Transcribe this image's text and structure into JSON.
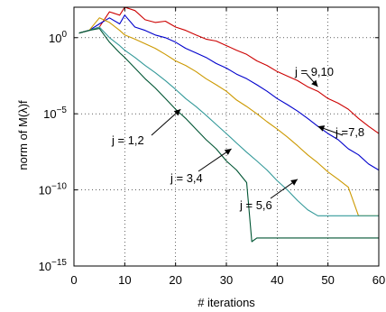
{
  "chart_data": {
    "type": "line",
    "title": "",
    "xlabel": "# iterations",
    "ylabel": "norm of M(λ)f",
    "xlim": [
      0,
      60
    ],
    "ylim_exponent": [
      -15,
      2
    ],
    "yscale": "log",
    "grid": true,
    "x_ticks": [
      "0",
      "10",
      "20",
      "30",
      "40",
      "50",
      "60"
    ],
    "y_ticks": [
      {
        "base": "10",
        "exp": "0",
        "value": 1
      },
      {
        "base": "10",
        "exp": "−5",
        "value": 1e-05
      },
      {
        "base": "10",
        "exp": "−10",
        "value": 1e-10
      },
      {
        "base": "10",
        "exp": "−15",
        "value": 1e-15
      }
    ],
    "series": [
      {
        "color": "#cc0000",
        "points": [
          [
            1,
            2
          ],
          [
            3,
            3
          ],
          [
            5,
            5
          ],
          [
            7,
            50
          ],
          [
            9,
            30
          ],
          [
            10,
            100
          ],
          [
            12,
            60
          ],
          [
            14,
            15
          ],
          [
            16,
            10
          ],
          [
            18,
            12
          ],
          [
            20,
            5
          ],
          [
            22,
            3
          ],
          [
            24,
            1.5
          ],
          [
            26,
            0.8
          ],
          [
            28,
            0.6
          ],
          [
            30,
            0.3
          ],
          [
            32,
            0.15
          ],
          [
            34,
            0.08
          ],
          [
            36,
            0.03
          ],
          [
            38,
            0.015
          ],
          [
            40,
            0.006
          ],
          [
            42,
            0.003
          ],
          [
            44,
            0.0015
          ],
          [
            46,
            0.0006
          ],
          [
            48,
            0.0003
          ],
          [
            50,
            0.0001
          ],
          [
            52,
            5e-05
          ],
          [
            54,
            2e-05
          ],
          [
            56,
            5e-06
          ],
          [
            58,
            1.5e-06
          ],
          [
            60,
            5e-07
          ]
        ]
      },
      {
        "color": "#0000cc",
        "points": [
          [
            1,
            2
          ],
          [
            3,
            3
          ],
          [
            5,
            8
          ],
          [
            7,
            20
          ],
          [
            9,
            8
          ],
          [
            10,
            30
          ],
          [
            12,
            5
          ],
          [
            14,
            3
          ],
          [
            16,
            1.5
          ],
          [
            18,
            1
          ],
          [
            20,
            0.5
          ],
          [
            22,
            0.2
          ],
          [
            24,
            0.1
          ],
          [
            26,
            0.05
          ],
          [
            28,
            0.02
          ],
          [
            30,
            0.01
          ],
          [
            32,
            0.004
          ],
          [
            34,
            0.002
          ],
          [
            36,
            0.0008
          ],
          [
            38,
            0.0003
          ],
          [
            40,
            0.0001
          ],
          [
            42,
            4e-05
          ],
          [
            44,
            1.5e-05
          ],
          [
            46,
            5e-06
          ],
          [
            48,
            1.5e-06
          ],
          [
            50,
            5e-07
          ],
          [
            52,
            2e-07
          ],
          [
            54,
            5e-08
          ],
          [
            56,
            2e-08
          ],
          [
            58,
            5e-09
          ],
          [
            60,
            2e-09
          ]
        ]
      },
      {
        "color": "#cc9900",
        "points": [
          [
            1,
            2
          ],
          [
            3,
            3
          ],
          [
            5,
            20
          ],
          [
            7,
            10
          ],
          [
            9,
            3
          ],
          [
            10,
            1.5
          ],
          [
            12,
            0.8
          ],
          [
            14,
            0.4
          ],
          [
            16,
            0.2
          ],
          [
            18,
            0.08
          ],
          [
            20,
            0.03
          ],
          [
            22,
            0.015
          ],
          [
            24,
            0.006
          ],
          [
            26,
            0.002
          ],
          [
            28,
            0.0008
          ],
          [
            30,
            0.0003
          ],
          [
            32,
            8e-05
          ],
          [
            34,
            3e-05
          ],
          [
            36,
            1e-05
          ],
          [
            38,
            3e-06
          ],
          [
            40,
            1e-06
          ],
          [
            42,
            3e-07
          ],
          [
            44,
            8e-08
          ],
          [
            46,
            2e-08
          ],
          [
            48,
            6e-09
          ],
          [
            50,
            1.5e-09
          ],
          [
            52,
            5e-10
          ],
          [
            54,
            1.5e-10
          ],
          [
            56,
            2e-12
          ],
          [
            58,
            2e-12
          ],
          [
            60,
            2e-12
          ]
        ]
      },
      {
        "color": "#339999",
        "points": [
          [
            1,
            2
          ],
          [
            3,
            3
          ],
          [
            5,
            5
          ],
          [
            7,
            1
          ],
          [
            9,
            0.3
          ],
          [
            10,
            0.15
          ],
          [
            12,
            0.05
          ],
          [
            14,
            0.015
          ],
          [
            16,
            0.005
          ],
          [
            18,
            0.0015
          ],
          [
            20,
            0.0004
          ],
          [
            22,
            0.0001
          ],
          [
            24,
            3e-05
          ],
          [
            26,
            8e-06
          ],
          [
            28,
            2e-06
          ],
          [
            30,
            5e-07
          ],
          [
            32,
            1.2e-07
          ],
          [
            34,
            3e-08
          ],
          [
            36,
            8e-09
          ],
          [
            38,
            2e-09
          ],
          [
            40,
            4e-10
          ],
          [
            42,
            1e-10
          ],
          [
            44,
            2e-11
          ],
          [
            46,
            5e-12
          ],
          [
            48,
            2e-12
          ],
          [
            50,
            2e-12
          ],
          [
            52,
            2e-12
          ],
          [
            54,
            2e-12
          ],
          [
            56,
            2e-12
          ],
          [
            58,
            2e-12
          ],
          [
            60,
            2e-12
          ]
        ]
      },
      {
        "color": "#005533",
        "points": [
          [
            1,
            2
          ],
          [
            3,
            3
          ],
          [
            5,
            4
          ],
          [
            7,
            0.5
          ],
          [
            9,
            0.1
          ],
          [
            10,
            0.05
          ],
          [
            12,
            0.01
          ],
          [
            14,
            0.002
          ],
          [
            16,
            0.0005
          ],
          [
            18,
            0.0001
          ],
          [
            20,
            2e-05
          ],
          [
            22,
            5e-06
          ],
          [
            24,
            1e-06
          ],
          [
            26,
            2e-07
          ],
          [
            28,
            5e-08
          ],
          [
            30,
            8e-09
          ],
          [
            32,
            2e-09
          ],
          [
            34,
            3e-10
          ],
          [
            35,
            4e-14
          ],
          [
            36,
            7e-14
          ],
          [
            38,
            7e-14
          ],
          [
            40,
            7e-14
          ],
          [
            42,
            7e-14
          ],
          [
            44,
            7e-14
          ],
          [
            46,
            7e-14
          ],
          [
            48,
            7e-14
          ],
          [
            50,
            7e-14
          ],
          [
            52,
            7e-14
          ],
          [
            54,
            7e-14
          ],
          [
            56,
            7e-14
          ],
          [
            58,
            7e-14
          ],
          [
            60,
            7e-14
          ]
        ]
      }
    ],
    "annotations": [
      {
        "label": "j = 9,10",
        "target": [
          48,
          0.0006
        ]
      },
      {
        "label": "j =7,8",
        "target": [
          48,
          1.5e-06
        ]
      },
      {
        "label": "j = 1,2",
        "target": [
          21,
          2e-05
        ]
      },
      {
        "label": "j = 3,4",
        "target": [
          31,
          5e-08
        ]
      },
      {
        "label": "j = 5,6",
        "target": [
          44,
          5e-10
        ]
      }
    ]
  }
}
